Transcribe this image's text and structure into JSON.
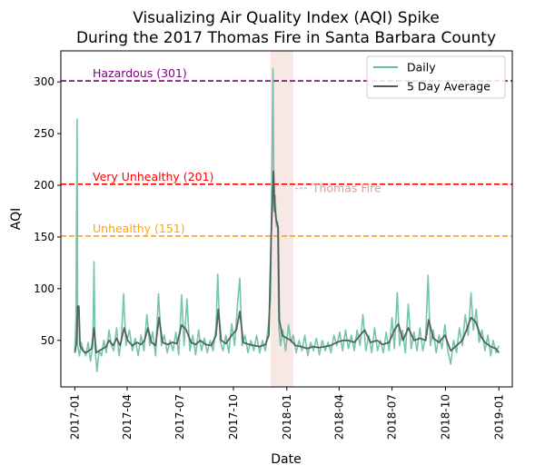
{
  "chart_data": {
    "type": "line",
    "title_lines": [
      "Visualizing Air Quality Index (AQI) Spike",
      "During the 2017 Thomas Fire in Santa Barbara County"
    ],
    "xlabel": "Date",
    "ylabel": "AQI",
    "xlim": [
      "2016-12-08",
      "2019-01-24"
    ],
    "ylim": [
      5,
      330
    ],
    "x_ticks": [
      "2017-01",
      "2017-04",
      "2017-07",
      "2017-10",
      "2018-01",
      "2018-04",
      "2018-07",
      "2018-10",
      "2019-01"
    ],
    "y_ticks": [
      50,
      100,
      150,
      200,
      250,
      300
    ],
    "grid": false,
    "legend_position": "top-right",
    "thresholds": [
      {
        "label": "Hazardous (301)",
        "value": 301,
        "color": "#800080"
      },
      {
        "label": "Very Unhealthy (201)",
        "value": 201,
        "color": "#ff0000"
      },
      {
        "label": "Unhealthy (151)",
        "value": 151,
        "color": "#ffa500"
      }
    ],
    "fire_period": {
      "label": "Thomas Fire",
      "start": "2017-12-04",
      "end": "2018-01-12",
      "color": "#e8bbb5"
    },
    "series": [
      {
        "name": "Daily",
        "color": "#66bfa0",
        "points": [
          [
            "2017-01-01",
            40
          ],
          [
            "2017-01-03",
            70
          ],
          [
            "2017-01-05",
            264
          ],
          [
            "2017-01-06",
            45
          ],
          [
            "2017-01-09",
            35
          ],
          [
            "2017-01-12",
            48
          ],
          [
            "2017-01-16",
            40
          ],
          [
            "2017-01-20",
            35
          ],
          [
            "2017-01-24",
            48
          ],
          [
            "2017-01-28",
            30
          ],
          [
            "2017-02-01",
            45
          ],
          [
            "2017-02-03",
            126
          ],
          [
            "2017-02-05",
            42
          ],
          [
            "2017-02-08",
            20
          ],
          [
            "2017-02-12",
            40
          ],
          [
            "2017-02-16",
            35
          ],
          [
            "2017-02-20",
            50
          ],
          [
            "2017-02-24",
            38
          ],
          [
            "2017-03-01",
            60
          ],
          [
            "2017-03-05",
            45
          ],
          [
            "2017-03-09",
            40
          ],
          [
            "2017-03-14",
            62
          ],
          [
            "2017-03-18",
            35
          ],
          [
            "2017-03-22",
            50
          ],
          [
            "2017-03-26",
            95
          ],
          [
            "2017-03-30",
            45
          ],
          [
            "2017-04-05",
            60
          ],
          [
            "2017-04-10",
            40
          ],
          [
            "2017-04-15",
            52
          ],
          [
            "2017-04-20",
            35
          ],
          [
            "2017-04-25",
            55
          ],
          [
            "2017-04-30",
            40
          ],
          [
            "2017-05-05",
            75
          ],
          [
            "2017-05-10",
            45
          ],
          [
            "2017-05-15",
            58
          ],
          [
            "2017-05-20",
            35
          ],
          [
            "2017-05-25",
            95
          ],
          [
            "2017-05-30",
            45
          ],
          [
            "2017-06-04",
            55
          ],
          [
            "2017-06-09",
            38
          ],
          [
            "2017-06-14",
            50
          ],
          [
            "2017-06-19",
            40
          ],
          [
            "2017-06-24",
            58
          ],
          [
            "2017-06-29",
            36
          ],
          [
            "2017-07-04",
            94
          ],
          [
            "2017-07-08",
            45
          ],
          [
            "2017-07-13",
            90
          ],
          [
            "2017-07-18",
            40
          ],
          [
            "2017-07-23",
            55
          ],
          [
            "2017-07-28",
            36
          ],
          [
            "2017-08-02",
            60
          ],
          [
            "2017-08-07",
            40
          ],
          [
            "2017-08-12",
            52
          ],
          [
            "2017-08-17",
            38
          ],
          [
            "2017-08-22",
            50
          ],
          [
            "2017-08-27",
            40
          ],
          [
            "2017-09-01",
            62
          ],
          [
            "2017-09-04",
            114
          ],
          [
            "2017-09-08",
            50
          ],
          [
            "2017-09-13",
            40
          ],
          [
            "2017-09-18",
            55
          ],
          [
            "2017-09-23",
            38
          ],
          [
            "2017-09-28",
            66
          ],
          [
            "2017-10-03",
            45
          ],
          [
            "2017-10-08",
            85
          ],
          [
            "2017-10-12",
            110
          ],
          [
            "2017-10-16",
            45
          ],
          [
            "2017-10-21",
            55
          ],
          [
            "2017-10-26",
            38
          ],
          [
            "2017-10-31",
            50
          ],
          [
            "2017-11-05",
            40
          ],
          [
            "2017-11-10",
            55
          ],
          [
            "2017-11-15",
            38
          ],
          [
            "2017-11-20",
            50
          ],
          [
            "2017-11-25",
            40
          ],
          [
            "2017-11-30",
            65
          ],
          [
            "2017-12-04",
            90
          ],
          [
            "2017-12-06",
            200
          ],
          [
            "2017-12-08",
            313
          ],
          [
            "2017-12-10",
            175
          ],
          [
            "2017-12-12",
            190
          ],
          [
            "2017-12-14",
            160
          ],
          [
            "2017-12-16",
            165
          ],
          [
            "2017-12-18",
            65
          ],
          [
            "2017-12-21",
            45
          ],
          [
            "2017-12-25",
            60
          ],
          [
            "2017-12-30",
            40
          ],
          [
            "2018-01-04",
            65
          ],
          [
            "2018-01-08",
            48
          ],
          [
            "2018-01-12",
            55
          ],
          [
            "2018-01-17",
            38
          ],
          [
            "2018-01-22",
            50
          ],
          [
            "2018-01-27",
            40
          ],
          [
            "2018-02-01",
            55
          ],
          [
            "2018-02-06",
            35
          ],
          [
            "2018-02-11",
            48
          ],
          [
            "2018-02-16",
            40
          ],
          [
            "2018-02-21",
            52
          ],
          [
            "2018-02-26",
            36
          ],
          [
            "2018-03-03",
            50
          ],
          [
            "2018-03-08",
            40
          ],
          [
            "2018-03-13",
            48
          ],
          [
            "2018-03-18",
            38
          ],
          [
            "2018-03-23",
            55
          ],
          [
            "2018-03-28",
            45
          ],
          [
            "2018-04-02",
            58
          ],
          [
            "2018-04-07",
            40
          ],
          [
            "2018-04-12",
            60
          ],
          [
            "2018-04-17",
            42
          ],
          [
            "2018-04-22",
            55
          ],
          [
            "2018-04-27",
            40
          ],
          [
            "2018-05-02",
            60
          ],
          [
            "2018-05-07",
            45
          ],
          [
            "2018-05-12",
            75
          ],
          [
            "2018-05-17",
            40
          ],
          [
            "2018-05-22",
            55
          ],
          [
            "2018-05-27",
            38
          ],
          [
            "2018-06-01",
            62
          ],
          [
            "2018-06-06",
            40
          ],
          [
            "2018-06-11",
            50
          ],
          [
            "2018-06-16",
            38
          ],
          [
            "2018-06-21",
            58
          ],
          [
            "2018-06-26",
            40
          ],
          [
            "2018-07-01",
            72
          ],
          [
            "2018-07-05",
            42
          ],
          [
            "2018-07-10",
            96
          ],
          [
            "2018-07-14",
            45
          ],
          [
            "2018-07-19",
            60
          ],
          [
            "2018-07-24",
            38
          ],
          [
            "2018-07-29",
            85
          ],
          [
            "2018-08-03",
            42
          ],
          [
            "2018-08-08",
            58
          ],
          [
            "2018-08-13",
            40
          ],
          [
            "2018-08-18",
            62
          ],
          [
            "2018-08-23",
            40
          ],
          [
            "2018-08-28",
            55
          ],
          [
            "2018-09-01",
            113
          ],
          [
            "2018-09-05",
            45
          ],
          [
            "2018-09-10",
            60
          ],
          [
            "2018-09-15",
            38
          ],
          [
            "2018-09-20",
            55
          ],
          [
            "2018-09-25",
            42
          ],
          [
            "2018-09-30",
            65
          ],
          [
            "2018-10-05",
            40
          ],
          [
            "2018-10-10",
            27
          ],
          [
            "2018-10-15",
            50
          ],
          [
            "2018-10-20",
            38
          ],
          [
            "2018-10-25",
            62
          ],
          [
            "2018-10-30",
            45
          ],
          [
            "2018-11-04",
            75
          ],
          [
            "2018-11-09",
            55
          ],
          [
            "2018-11-14",
            96
          ],
          [
            "2018-11-18",
            60
          ],
          [
            "2018-11-23",
            80
          ],
          [
            "2018-11-28",
            48
          ],
          [
            "2018-12-03",
            60
          ],
          [
            "2018-12-08",
            40
          ],
          [
            "2018-12-13",
            55
          ],
          [
            "2018-12-18",
            35
          ],
          [
            "2018-12-22",
            50
          ],
          [
            "2018-12-27",
            38
          ],
          [
            "2019-01-01",
            45
          ]
        ]
      },
      {
        "name": "5 Day Average",
        "color": "#4d5b57",
        "points": [
          [
            "2017-01-01",
            38
          ],
          [
            "2017-01-04",
            48
          ],
          [
            "2017-01-06",
            83
          ],
          [
            "2017-01-08",
            83
          ],
          [
            "2017-01-10",
            45
          ],
          [
            "2017-01-15",
            40
          ],
          [
            "2017-01-20",
            38
          ],
          [
            "2017-01-25",
            40
          ],
          [
            "2017-01-30",
            42
          ],
          [
            "2017-02-03",
            62
          ],
          [
            "2017-02-07",
            38
          ],
          [
            "2017-02-12",
            40
          ],
          [
            "2017-02-18",
            42
          ],
          [
            "2017-02-24",
            44
          ],
          [
            "2017-03-01",
            50
          ],
          [
            "2017-03-08",
            45
          ],
          [
            "2017-03-14",
            52
          ],
          [
            "2017-03-20",
            45
          ],
          [
            "2017-03-27",
            62
          ],
          [
            "2017-04-02",
            50
          ],
          [
            "2017-04-10",
            45
          ],
          [
            "2017-04-18",
            48
          ],
          [
            "2017-04-25",
            46
          ],
          [
            "2017-05-01",
            50
          ],
          [
            "2017-05-07",
            62
          ],
          [
            "2017-05-13",
            48
          ],
          [
            "2017-05-20",
            45
          ],
          [
            "2017-05-26",
            72
          ],
          [
            "2017-06-01",
            48
          ],
          [
            "2017-06-10",
            46
          ],
          [
            "2017-06-18",
            48
          ],
          [
            "2017-06-26",
            47
          ],
          [
            "2017-07-04",
            65
          ],
          [
            "2017-07-12",
            60
          ],
          [
            "2017-07-20",
            48
          ],
          [
            "2017-07-28",
            46
          ],
          [
            "2017-08-05",
            50
          ],
          [
            "2017-08-14",
            46
          ],
          [
            "2017-08-24",
            45
          ],
          [
            "2017-09-01",
            55
          ],
          [
            "2017-09-05",
            80
          ],
          [
            "2017-09-10",
            50
          ],
          [
            "2017-09-18",
            47
          ],
          [
            "2017-09-28",
            55
          ],
          [
            "2017-10-06",
            60
          ],
          [
            "2017-10-12",
            78
          ],
          [
            "2017-10-18",
            48
          ],
          [
            "2017-10-28",
            46
          ],
          [
            "2017-11-06",
            45
          ],
          [
            "2017-11-15",
            44
          ],
          [
            "2017-11-25",
            46
          ],
          [
            "2017-12-01",
            55
          ],
          [
            "2017-12-05",
            150
          ],
          [
            "2017-12-09",
            214
          ],
          [
            "2017-12-11",
            180
          ],
          [
            "2017-12-14",
            165
          ],
          [
            "2017-12-17",
            160
          ],
          [
            "2017-12-19",
            70
          ],
          [
            "2017-12-24",
            55
          ],
          [
            "2018-01-01",
            52
          ],
          [
            "2018-01-08",
            50
          ],
          [
            "2018-01-16",
            45
          ],
          [
            "2018-01-26",
            44
          ],
          [
            "2018-02-05",
            42
          ],
          [
            "2018-02-15",
            44
          ],
          [
            "2018-02-25",
            43
          ],
          [
            "2018-03-07",
            44
          ],
          [
            "2018-03-17",
            45
          ],
          [
            "2018-03-28",
            48
          ],
          [
            "2018-04-07",
            50
          ],
          [
            "2018-04-17",
            50
          ],
          [
            "2018-04-27",
            48
          ],
          [
            "2018-05-07",
            55
          ],
          [
            "2018-05-15",
            60
          ],
          [
            "2018-05-25",
            48
          ],
          [
            "2018-06-05",
            50
          ],
          [
            "2018-06-15",
            46
          ],
          [
            "2018-06-26",
            48
          ],
          [
            "2018-07-05",
            60
          ],
          [
            "2018-07-12",
            66
          ],
          [
            "2018-07-20",
            50
          ],
          [
            "2018-07-29",
            62
          ],
          [
            "2018-08-08",
            50
          ],
          [
            "2018-08-18",
            52
          ],
          [
            "2018-08-28",
            50
          ],
          [
            "2018-09-02",
            70
          ],
          [
            "2018-09-10",
            52
          ],
          [
            "2018-09-20",
            48
          ],
          [
            "2018-09-30",
            55
          ],
          [
            "2018-10-10",
            40
          ],
          [
            "2018-10-20",
            45
          ],
          [
            "2018-10-30",
            50
          ],
          [
            "2018-11-06",
            60
          ],
          [
            "2018-11-14",
            72
          ],
          [
            "2018-11-22",
            68
          ],
          [
            "2018-11-30",
            55
          ],
          [
            "2018-12-08",
            48
          ],
          [
            "2018-12-18",
            44
          ],
          [
            "2018-12-27",
            42
          ],
          [
            "2019-01-01",
            38
          ]
        ]
      }
    ]
  }
}
